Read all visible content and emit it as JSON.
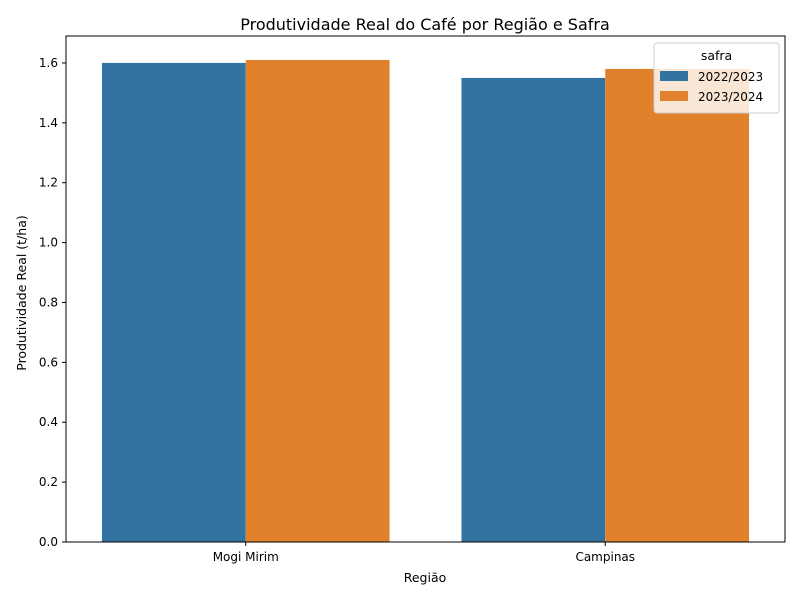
{
  "chart_data": {
    "type": "bar",
    "title": "Produtividade Real do Café por Região e Safra",
    "xlabel": "Região",
    "ylabel": "Produtividade Real (t/ha)",
    "categories": [
      "Mogi Mirim",
      "Campinas"
    ],
    "series": [
      {
        "name": "2022/2023",
        "values": [
          1.6,
          1.55
        ],
        "color": "#3274a1"
      },
      {
        "name": "2023/2024",
        "values": [
          1.61,
          1.58
        ],
        "color": "#e1812c"
      }
    ],
    "ylim": [
      0,
      1.69
    ],
    "yticks": [
      0.0,
      0.2,
      0.4,
      0.6,
      0.8,
      1.0,
      1.2,
      1.4,
      1.6
    ],
    "legend": {
      "title": "safra",
      "position": "top-right"
    },
    "grid": false
  }
}
